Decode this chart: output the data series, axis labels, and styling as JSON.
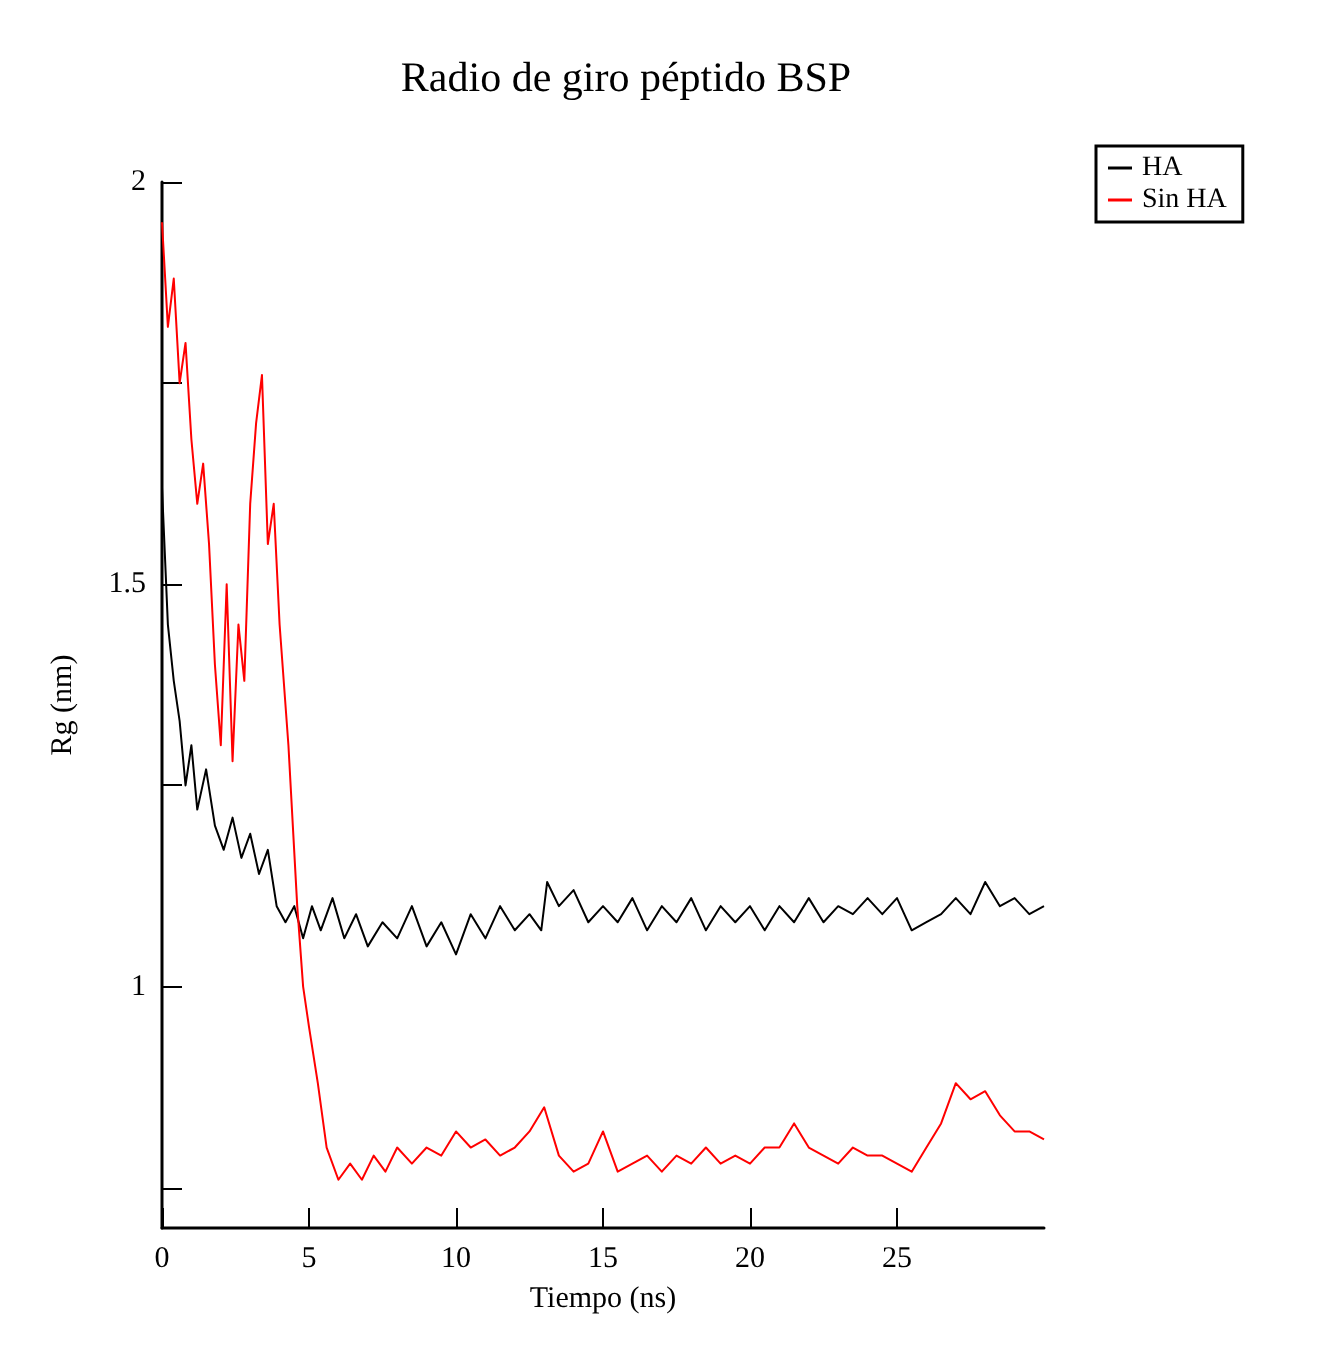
{
  "chart_data": {
    "type": "line",
    "title": "Radio de giro péptido BSP",
    "xlabel": "Tiempo (ns)",
    "ylabel": "Rg (nm)",
    "xlim": [
      0,
      30
    ],
    "xticks": [
      0,
      5,
      10,
      15,
      20,
      25
    ],
    "ylim": [
      0.7,
      2
    ],
    "yticks": [
      {
        "value": 0.75,
        "label": null
      },
      1,
      {
        "value": 1.25,
        "label": null
      },
      1.5,
      {
        "value": 1.75,
        "label": null
      },
      2
    ],
    "grid": false,
    "legend": "top right",
    "marker": "none",
    "line_style": "solid",
    "series": [
      {
        "name": "HA",
        "color": "#000000",
        "x": [
          0,
          0.2,
          0.4,
          0.6,
          0.8,
          1.0,
          1.2,
          1.5,
          1.8,
          2.1,
          2.4,
          2.7,
          3.0,
          3.3,
          3.6,
          3.9,
          4.2,
          4.5,
          4.8,
          5.1,
          5.4,
          5.8,
          6.2,
          6.6,
          7.0,
          7.5,
          8.0,
          8.5,
          9.0,
          9.5,
          10.0,
          10.5,
          11.0,
          11.5,
          12.0,
          12.5,
          12.9,
          13.1,
          13.5,
          14.0,
          14.5,
          15.0,
          15.5,
          16.0,
          16.5,
          17.0,
          17.5,
          18.0,
          18.5,
          19.0,
          19.5,
          20.0,
          20.5,
          21.0,
          21.5,
          22.0,
          22.5,
          23.0,
          23.5,
          24.0,
          24.5,
          25.0,
          25.5,
          26.0,
          26.5,
          27.0,
          27.5,
          28.0,
          28.5,
          29.0,
          29.5,
          30
        ],
        "values": [
          1.62,
          1.45,
          1.38,
          1.33,
          1.25,
          1.3,
          1.22,
          1.27,
          1.2,
          1.17,
          1.21,
          1.16,
          1.19,
          1.14,
          1.17,
          1.1,
          1.08,
          1.1,
          1.06,
          1.1,
          1.07,
          1.11,
          1.06,
          1.09,
          1.05,
          1.08,
          1.06,
          1.1,
          1.05,
          1.08,
          1.04,
          1.09,
          1.06,
          1.1,
          1.07,
          1.09,
          1.07,
          1.13,
          1.1,
          1.12,
          1.08,
          1.1,
          1.08,
          1.11,
          1.07,
          1.1,
          1.08,
          1.11,
          1.07,
          1.1,
          1.08,
          1.1,
          1.07,
          1.1,
          1.08,
          1.11,
          1.08,
          1.1,
          1.09,
          1.11,
          1.09,
          1.11,
          1.07,
          1.08,
          1.09,
          1.11,
          1.09,
          1.13,
          1.1,
          1.11,
          1.09,
          1.1
        ]
      },
      {
        "name": "Sin HA",
        "color": "#ff0000",
        "x": [
          0,
          0.2,
          0.4,
          0.6,
          0.8,
          1.0,
          1.2,
          1.4,
          1.6,
          1.8,
          2.0,
          2.2,
          2.4,
          2.6,
          2.8,
          3.0,
          3.2,
          3.4,
          3.6,
          3.8,
          4.0,
          4.3,
          4.6,
          4.8,
          5.0,
          5.3,
          5.6,
          6.0,
          6.4,
          6.8,
          7.2,
          7.6,
          8.0,
          8.5,
          9.0,
          9.5,
          10.0,
          10.5,
          11.0,
          11.5,
          12.0,
          12.5,
          13.0,
          13.5,
          14.0,
          14.5,
          15.0,
          15.5,
          16.0,
          16.5,
          17.0,
          17.5,
          18.0,
          18.5,
          19.0,
          19.5,
          20.0,
          20.5,
          21.0,
          21.5,
          22.0,
          22.5,
          23.0,
          23.5,
          24.0,
          24.5,
          25.0,
          25.5,
          26.0,
          26.5,
          27.0,
          27.5,
          28.0,
          28.5,
          29.0,
          29.5,
          30
        ],
        "values": [
          1.95,
          1.82,
          1.88,
          1.75,
          1.8,
          1.68,
          1.6,
          1.65,
          1.55,
          1.4,
          1.3,
          1.5,
          1.28,
          1.45,
          1.38,
          1.6,
          1.7,
          1.76,
          1.55,
          1.6,
          1.45,
          1.3,
          1.1,
          1.0,
          0.95,
          0.88,
          0.8,
          0.76,
          0.78,
          0.76,
          0.79,
          0.77,
          0.8,
          0.78,
          0.8,
          0.79,
          0.82,
          0.8,
          0.81,
          0.79,
          0.8,
          0.82,
          0.85,
          0.79,
          0.77,
          0.78,
          0.82,
          0.77,
          0.78,
          0.79,
          0.77,
          0.79,
          0.78,
          0.8,
          0.78,
          0.79,
          0.78,
          0.8,
          0.8,
          0.83,
          0.8,
          0.79,
          0.78,
          0.8,
          0.79,
          0.79,
          0.78,
          0.77,
          0.8,
          0.83,
          0.88,
          0.86,
          0.87,
          0.84,
          0.82,
          0.82,
          0.81
        ]
      }
    ]
  }
}
